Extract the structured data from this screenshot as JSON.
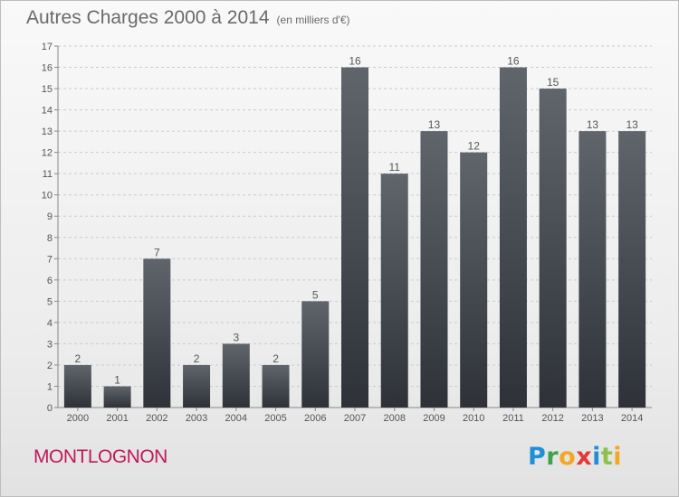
{
  "header": {
    "title": "Autres Charges 2000 à 2014",
    "subtitle": "(en milliers d'€)"
  },
  "footer": {
    "commune": "MONTLOGNON",
    "brand": {
      "parts": [
        "P",
        "r",
        "o",
        "x",
        "i",
        "t",
        "i"
      ]
    }
  },
  "colors": {
    "bar_top": "#60656c",
    "bar_bottom": "#2e3238",
    "grid": "#c8cbd0",
    "text": "#555555",
    "commune": "#c2185b"
  },
  "chart_data": {
    "type": "bar",
    "title": "Autres Charges 2000 à 2014",
    "subtitle": "(en milliers d'€)",
    "xlabel": "",
    "ylabel": "",
    "categories": [
      "2000",
      "2001",
      "2002",
      "2003",
      "2004",
      "2005",
      "2006",
      "2007",
      "2008",
      "2009",
      "2010",
      "2011",
      "2012",
      "2013",
      "2014"
    ],
    "values": [
      2,
      1,
      7,
      2,
      3,
      2,
      5,
      16,
      11,
      13,
      12,
      16,
      15,
      13,
      13
    ],
    "data_labels": [
      "2",
      "1",
      "7",
      "2",
      "3",
      "2",
      "5",
      "16",
      "11",
      "13",
      "12",
      "16",
      "15",
      "13",
      "13"
    ],
    "ylim": [
      0,
      17
    ],
    "yticks": [
      0,
      1,
      2,
      3,
      4,
      5,
      6,
      7,
      8,
      9,
      10,
      11,
      12,
      13,
      14,
      15,
      16,
      17
    ],
    "grid": true,
    "legend": "none"
  }
}
